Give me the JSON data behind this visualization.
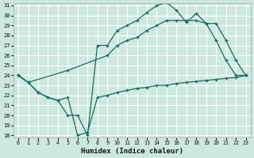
{
  "xlabel": "Humidex (Indice chaleur)",
  "bg_color": "#cce8e0",
  "grid_color": "#ffffff",
  "line_color": "#1a6b5a",
  "ylim": [
    18,
    31
  ],
  "xlim": [
    -0.5,
    23.5
  ],
  "yticks": [
    18,
    19,
    20,
    21,
    22,
    23,
    24,
    25,
    26,
    27,
    28,
    29,
    30,
    31
  ],
  "xticks": [
    0,
    1,
    2,
    3,
    4,
    5,
    6,
    7,
    8,
    9,
    10,
    11,
    12,
    13,
    14,
    15,
    16,
    17,
    18,
    19,
    20,
    21,
    22,
    23
  ],
  "line1_x": [
    0,
    1,
    2,
    3,
    4,
    5,
    6,
    7,
    8,
    9,
    10,
    11,
    12,
    13,
    14,
    15,
    16,
    17,
    18,
    19,
    20,
    21,
    22,
    23
  ],
  "line1_y": [
    24.0,
    23.3,
    22.3,
    21.8,
    21.5,
    21.8,
    18.0,
    18.3,
    21.8,
    22.0,
    22.3,
    22.5,
    22.7,
    22.8,
    23.0,
    23.0,
    23.2,
    23.3,
    23.4,
    23.5,
    23.6,
    23.7,
    23.8,
    24.0
  ],
  "line2_x": [
    0,
    1,
    2,
    3,
    4,
    5,
    6,
    7,
    8,
    9,
    10,
    11,
    12,
    13,
    14,
    15,
    16,
    17,
    18,
    19,
    20,
    21,
    22,
    23
  ],
  "line2_y": [
    24.0,
    23.3,
    22.3,
    21.8,
    21.5,
    20.0,
    20.0,
    18.0,
    27.0,
    27.0,
    28.5,
    29.0,
    29.5,
    30.3,
    31.0,
    31.3,
    30.5,
    29.3,
    30.2,
    29.2,
    27.5,
    25.5,
    24.0,
    24.0
  ],
  "line3_x": [
    0,
    1,
    5,
    9,
    10,
    11,
    12,
    13,
    14,
    15,
    16,
    17,
    18,
    19,
    20,
    21,
    22,
    23
  ],
  "line3_y": [
    24.0,
    23.3,
    24.5,
    26.0,
    27.0,
    27.5,
    27.8,
    28.5,
    29.0,
    29.5,
    29.5,
    29.5,
    29.5,
    29.2,
    29.2,
    27.5,
    25.5,
    24.0
  ]
}
